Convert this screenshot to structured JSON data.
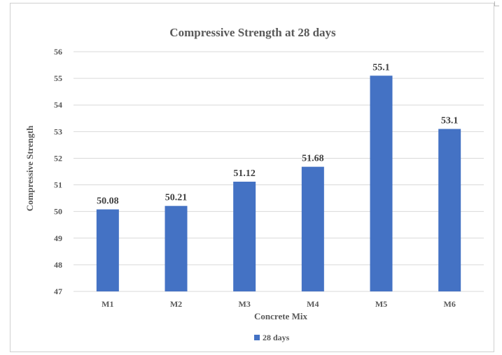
{
  "chart_data": {
    "type": "bar",
    "title": "Compressive Strength at 28 days",
    "xlabel": "Concrete Mix",
    "ylabel": "Compressive Strength",
    "categories": [
      "M1",
      "M2",
      "M3",
      "M4",
      "M5",
      "M6"
    ],
    "series": [
      {
        "name": "28 days",
        "values": [
          50.08,
          50.21,
          51.12,
          51.68,
          55.1,
          53.1
        ],
        "labels": [
          "50.08",
          "50.21",
          "51.12",
          "51.68",
          "55.1",
          "53.1"
        ],
        "color": "#4472C4"
      }
    ],
    "ylim": [
      47,
      56
    ],
    "yticks": [
      47,
      48,
      49,
      50,
      51,
      52,
      53,
      54,
      55,
      56
    ],
    "grid": true,
    "legend_position": "bottom"
  }
}
